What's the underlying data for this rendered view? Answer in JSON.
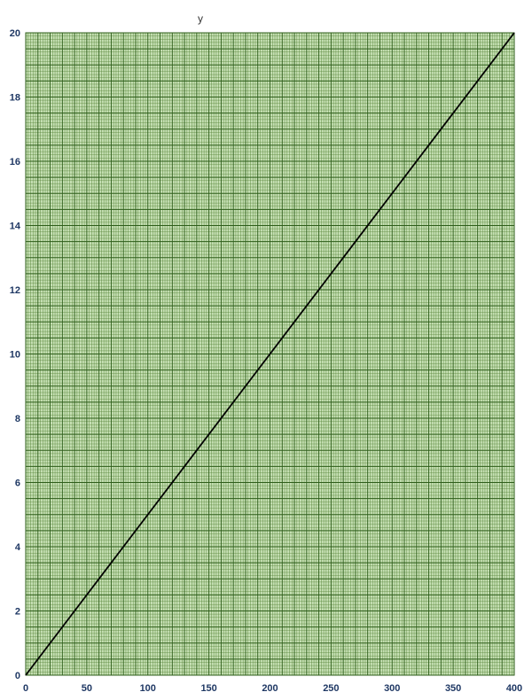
{
  "chart_data": {
    "type": "line",
    "title": "y",
    "xlabel": "",
    "ylabel": "",
    "xlim": [
      0,
      400
    ],
    "ylim": [
      0,
      20
    ],
    "x_ticks": [
      0,
      50,
      100,
      150,
      200,
      250,
      300,
      350,
      400
    ],
    "y_ticks": [
      0,
      2,
      4,
      6,
      8,
      10,
      12,
      14,
      16,
      18,
      20
    ],
    "grid": true,
    "legend": "none",
    "series": [
      {
        "x": [
          0,
          50,
          100,
          150,
          200,
          250,
          300,
          350,
          400
        ],
        "values": [
          0,
          2.5,
          5,
          7.5,
          10,
          12.5,
          15,
          17.5,
          20
        ]
      }
    ]
  },
  "colors": {
    "plot_background": "#c6e0b4",
    "minor_grid": "#548235",
    "major_grid": "#2e5e1a",
    "tick_label": "#1f3864",
    "line": "#000000"
  }
}
